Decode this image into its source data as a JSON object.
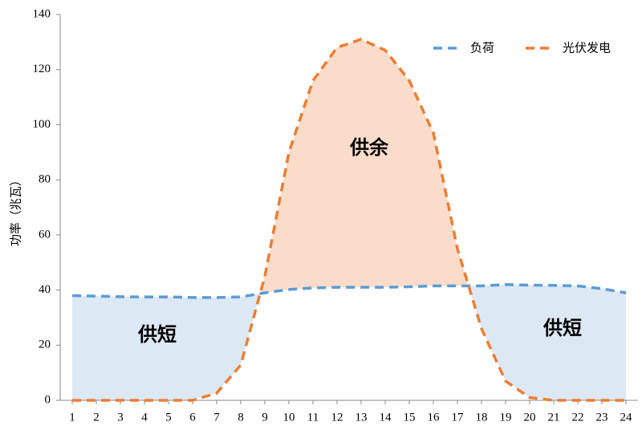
{
  "chart_data": {
    "type": "line",
    "y_label": "功率（兆瓦）",
    "x": [
      1,
      2,
      3,
      4,
      5,
      6,
      7,
      8,
      9,
      10,
      11,
      12,
      13,
      14,
      15,
      16,
      17,
      18,
      19,
      20,
      21,
      22,
      23,
      24
    ],
    "series": [
      {
        "name": "负荷",
        "color": "#5b9bd5",
        "values": [
          38,
          37.8,
          37.6,
          37.5,
          37.5,
          37.3,
          37.3,
          37.5,
          39,
          40.2,
          40.8,
          41,
          41,
          41,
          41.2,
          41.5,
          41.5,
          41.5,
          42,
          41.8,
          41.7,
          41.5,
          40.5,
          39
        ]
      },
      {
        "name": "光伏发电",
        "color": "#ed7d31",
        "values": [
          0,
          0,
          0,
          0,
          0,
          0,
          2.6,
          12.8,
          45,
          90,
          116,
          128,
          131,
          127,
          116,
          97,
          55,
          26,
          7,
          1,
          0,
          0,
          0,
          0
        ]
      }
    ],
    "annotations": [
      "供余",
      "供短",
      "供短"
    ],
    "xlim": [
      0.5,
      24.5
    ],
    "xticks": [
      1,
      2,
      3,
      4,
      5,
      6,
      7,
      8,
      9,
      10,
      11,
      12,
      13,
      14,
      15,
      16,
      17,
      18,
      19,
      20,
      21,
      22,
      23,
      24
    ],
    "ylim": [
      0,
      140
    ],
    "yticks": [
      0,
      20,
      40,
      60,
      80,
      100,
      120,
      140
    ],
    "legend": "upper right"
  }
}
